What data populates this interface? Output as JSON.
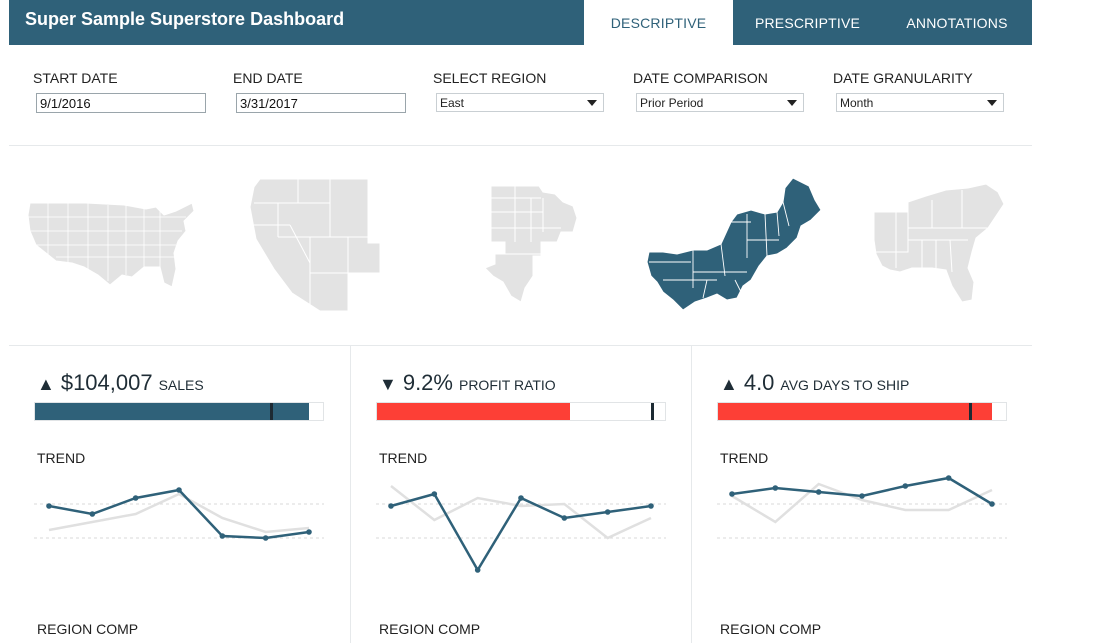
{
  "header": {
    "title": "Super Sample Superstore Dashboard",
    "tabs": [
      {
        "label": "DESCRIPTIVE",
        "active": true
      },
      {
        "label": "PRESCRIPTIVE",
        "active": false
      },
      {
        "label": "ANNOTATIONS",
        "active": false
      }
    ]
  },
  "filters": {
    "start_date": {
      "label": "START DATE",
      "value": "9/1/2016"
    },
    "end_date": {
      "label": "END DATE",
      "value": "3/31/2017"
    },
    "region": {
      "label": "SELECT REGION",
      "value": "East"
    },
    "date_comparison": {
      "label": "DATE COMPARISON",
      "value": "Prior Period"
    },
    "date_granularity": {
      "label": "DATE GRANULARITY",
      "value": "Month"
    }
  },
  "maps": [
    {
      "name": "United States",
      "selected": false
    },
    {
      "name": "West",
      "selected": false
    },
    {
      "name": "Central",
      "selected": false
    },
    {
      "name": "East",
      "selected": true
    },
    {
      "name": "South",
      "selected": false
    }
  ],
  "colors": {
    "header": "#2f6179",
    "accent": "#2f6179",
    "negative": "#fd3f36",
    "map_inactive": "#e3e3e3",
    "comparison_line": "#e0e0e0"
  },
  "kpis": [
    {
      "arrow": "▲",
      "value": "$104,007",
      "label": "SALES",
      "bar_color": "#2f6179",
      "bar_fraction": 0.95,
      "reference_fraction": 0.82,
      "trend_label": "TREND",
      "region_label": "REGION COMP",
      "trend": {
        "current": [
          44,
          40,
          48,
          52,
          29,
          28,
          31
        ],
        "previous": [
          32,
          36,
          40,
          50,
          38,
          31,
          33
        ]
      }
    },
    {
      "arrow": "▼",
      "value": "9.2%",
      "label": "PROFIT RATIO",
      "bar_color": "#fd3f36",
      "bar_fraction": 0.67,
      "reference_fraction": 0.955,
      "trend_label": "TREND",
      "region_label": "REGION COMP",
      "trend": {
        "current": [
          44,
          50,
          12,
          48,
          38,
          41,
          44
        ],
        "previous": [
          54,
          37,
          48,
          44,
          45,
          28,
          38
        ]
      }
    },
    {
      "arrow": "▲",
      "value": "4.0",
      "label": "AVG DAYS TO SHIP",
      "bar_color": "#fd3f36",
      "bar_fraction": 0.95,
      "reference_fraction": 0.875,
      "trend_label": "TREND",
      "region_label": "REGION COMP",
      "trend": {
        "current": [
          50,
          53,
          51,
          49,
          54,
          58,
          45
        ],
        "previous": [
          49,
          36,
          55,
          47,
          42,
          42,
          52
        ]
      }
    }
  ]
}
